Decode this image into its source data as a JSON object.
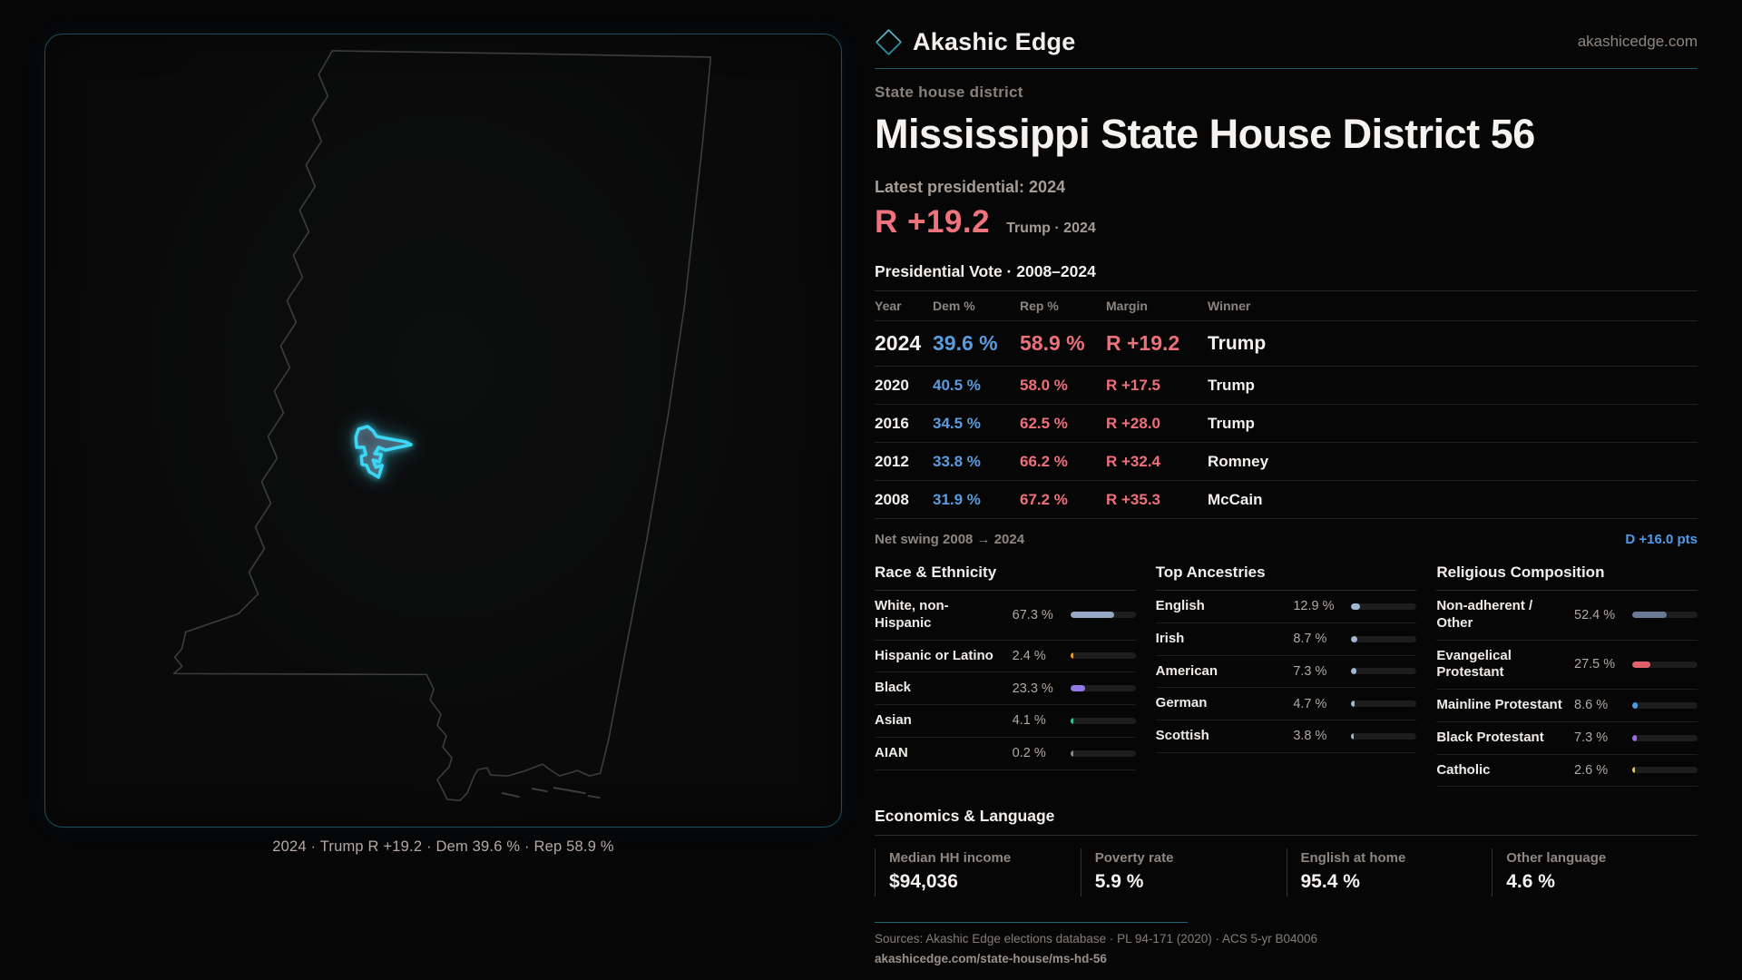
{
  "brand": {
    "name": "Akashic Edge",
    "domain": "akashicedge.com"
  },
  "page": {
    "kicker": "State house district",
    "title": "Mississippi State House District 56"
  },
  "latest": {
    "label": "Latest presidential: 2024",
    "margin": "R +19.2",
    "detail": "Trump · 2024"
  },
  "vote_table": {
    "title": "Presidential Vote · 2008–2024",
    "columns": [
      "Year",
      "Dem %",
      "Rep %",
      "Margin",
      "Winner"
    ],
    "rows": [
      {
        "year": "2024",
        "dem": "39.6 %",
        "rep": "58.9 %",
        "margin": "R +19.2",
        "winner": "Trump"
      },
      {
        "year": "2020",
        "dem": "40.5 %",
        "rep": "58.0 %",
        "margin": "R +17.5",
        "winner": "Trump"
      },
      {
        "year": "2016",
        "dem": "34.5 %",
        "rep": "62.5 %",
        "margin": "R +28.0",
        "winner": "Trump"
      },
      {
        "year": "2012",
        "dem": "33.8 %",
        "rep": "66.2 %",
        "margin": "R +32.4",
        "winner": "Romney"
      },
      {
        "year": "2008",
        "dem": "31.9 %",
        "rep": "67.2 %",
        "margin": "R +35.3",
        "winner": "McCain"
      }
    ]
  },
  "net_swing": {
    "label": "Net swing 2008 → 2024",
    "value": "D +16.0 pts"
  },
  "demographics": [
    {
      "title": "Race & Ethnicity",
      "rows": [
        {
          "label": "White, non-Hispanic",
          "value": "67.3 %",
          "bar": {
            "pct": 67.3,
            "color": "#97a8c4"
          }
        },
        {
          "label": "Hispanic or Latino",
          "value": "2.4 %",
          "bar": {
            "pct": 2.4,
            "color": "#e89c2e"
          }
        },
        {
          "label": "Black",
          "value": "23.3 %",
          "bar": {
            "pct": 23.3,
            "color": "#9478e8"
          }
        },
        {
          "label": "Asian",
          "value": "4.1 %",
          "bar": {
            "pct": 4.1,
            "color": "#2ec98e"
          }
        },
        {
          "label": "AIAN",
          "value": "0.2 %",
          "bar": {
            "pct": 0.2,
            "color": "#8a8a8a"
          }
        }
      ]
    },
    {
      "title": "Top Ancestries",
      "rows": [
        {
          "label": "English",
          "value": "12.9 %",
          "bar": {
            "pct": 12.9,
            "color": "#9fb8d4"
          }
        },
        {
          "label": "Irish",
          "value": "8.7 %",
          "bar": {
            "pct": 8.7,
            "color": "#9fb8d4"
          }
        },
        {
          "label": "American",
          "value": "7.3 %",
          "bar": {
            "pct": 7.3,
            "color": "#9fb8d4"
          }
        },
        {
          "label": "German",
          "value": "4.7 %",
          "bar": {
            "pct": 4.7,
            "color": "#9fb8d4"
          }
        },
        {
          "label": "Scottish",
          "value": "3.8 %",
          "bar": {
            "pct": 3.8,
            "color": "#9fb8d4"
          }
        }
      ]
    },
    {
      "title": "Religious Composition",
      "rows": [
        {
          "label": "Non-adherent / Other",
          "value": "52.4 %",
          "bar": {
            "pct": 52.4,
            "color": "#6b7a94"
          }
        },
        {
          "label": "Evangelical Protestant",
          "value": "27.5 %",
          "bar": {
            "pct": 27.5,
            "color": "#e0606c"
          }
        },
        {
          "label": "Mainline Protestant",
          "value": "8.6 %",
          "bar": {
            "pct": 8.6,
            "color": "#4d9de0"
          }
        },
        {
          "label": "Black Protestant",
          "value": "7.3 %",
          "bar": {
            "pct": 7.3,
            "color": "#9b6ce8"
          }
        },
        {
          "label": "Catholic",
          "value": "2.6 %",
          "bar": {
            "pct": 2.6,
            "color": "#e8c547"
          }
        }
      ]
    }
  ],
  "economics": {
    "title": "Economics & Language",
    "stats": [
      {
        "label": "Median HH income",
        "value": "$94,036"
      },
      {
        "label": "Poverty rate",
        "value": "5.9 %"
      },
      {
        "label": "English at home",
        "value": "95.4 %"
      },
      {
        "label": "Other language",
        "value": "4.6 %"
      }
    ]
  },
  "footer": {
    "sources": "Sources: Akashic Edge elections database · PL 94-171 (2020) · ACS 5-yr B04006",
    "permalink": "akashicedge.com/state-house/ms-hd-56"
  },
  "map": {
    "caption": "2024 · Trump R +19.2 · Dem 39.6 % · Rep 58.9 %",
    "district_color": "#3bd7f5"
  }
}
